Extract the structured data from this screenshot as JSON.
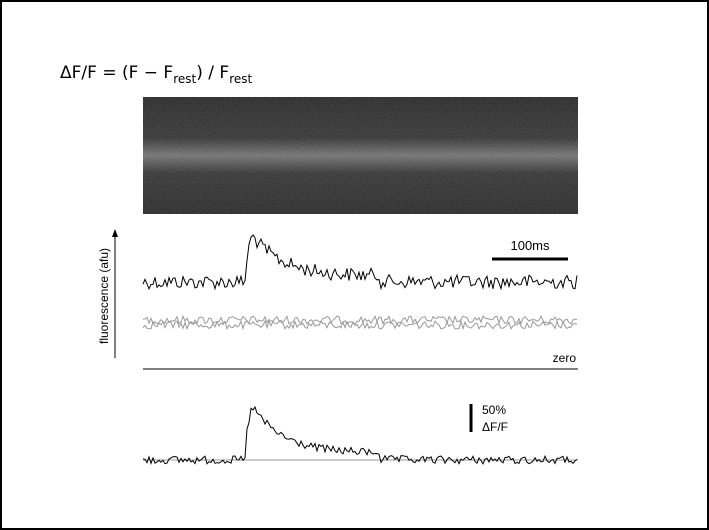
{
  "formula": {
    "parts": [
      "ΔF/F = (F − F",
      "rest",
      ") / F",
      "rest"
    ]
  },
  "y_axis_label": "fluorescence (afu)",
  "time_scale_label": "100ms",
  "zero_label": "zero",
  "amplitude_scale": {
    "value": "50%",
    "unit": "ΔF/F"
  }
}
